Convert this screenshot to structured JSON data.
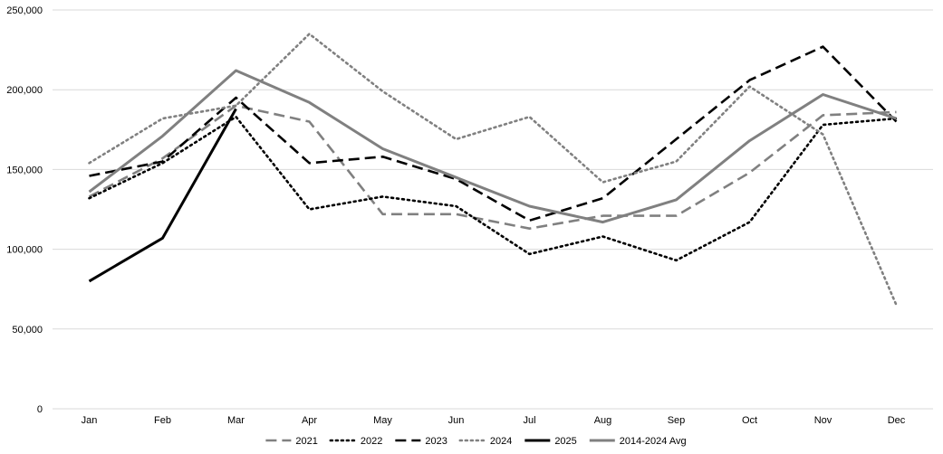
{
  "chart_data": {
    "type": "line",
    "title": "",
    "xlabel": "",
    "ylabel": "",
    "ylim": [
      0,
      250000
    ],
    "yticks": [
      0,
      50000,
      100000,
      150000,
      200000,
      250000
    ],
    "ytick_labels": [
      "0",
      "50,000",
      "100,000",
      "150,000",
      "200,000",
      "250,000"
    ],
    "grid": true,
    "legend_position": "bottom",
    "categories": [
      "Jan",
      "Feb",
      "Mar",
      "Apr",
      "May",
      "Jun",
      "Jul",
      "Aug",
      "Sep",
      "Oct",
      "Nov",
      "Dec"
    ],
    "series": [
      {
        "name": "2021",
        "color": "#808080",
        "style": "dashed",
        "values": [
          133000,
          157000,
          190000,
          180000,
          122000,
          122000,
          113000,
          121000,
          121000,
          148000,
          184000,
          186000
        ]
      },
      {
        "name": "2022",
        "color": "#000000",
        "style": "dotted",
        "values": [
          132000,
          154000,
          183000,
          125000,
          133000,
          127000,
          97000,
          108000,
          93000,
          117000,
          178000,
          182000
        ]
      },
      {
        "name": "2023",
        "color": "#000000",
        "style": "dashed",
        "values": [
          146000,
          155000,
          195000,
          154000,
          158000,
          144000,
          118000,
          132000,
          169000,
          206000,
          227000,
          180000
        ]
      },
      {
        "name": "2024",
        "color": "#808080",
        "style": "dotted",
        "values": [
          154000,
          182000,
          190000,
          235000,
          199000,
          169000,
          183000,
          142000,
          155000,
          202000,
          172000,
          65000
        ]
      },
      {
        "name": "2025",
        "color": "#000000",
        "style": "solid",
        "values": [
          80000,
          107000,
          188000,
          null,
          null,
          null,
          null,
          null,
          null,
          null,
          null,
          null
        ]
      },
      {
        "name": "2014-2024 Avg",
        "color": "#808080",
        "style": "solid",
        "values": [
          136000,
          171000,
          212000,
          192000,
          163000,
          145000,
          127000,
          117000,
          131000,
          168000,
          197000,
          182000
        ]
      }
    ]
  }
}
